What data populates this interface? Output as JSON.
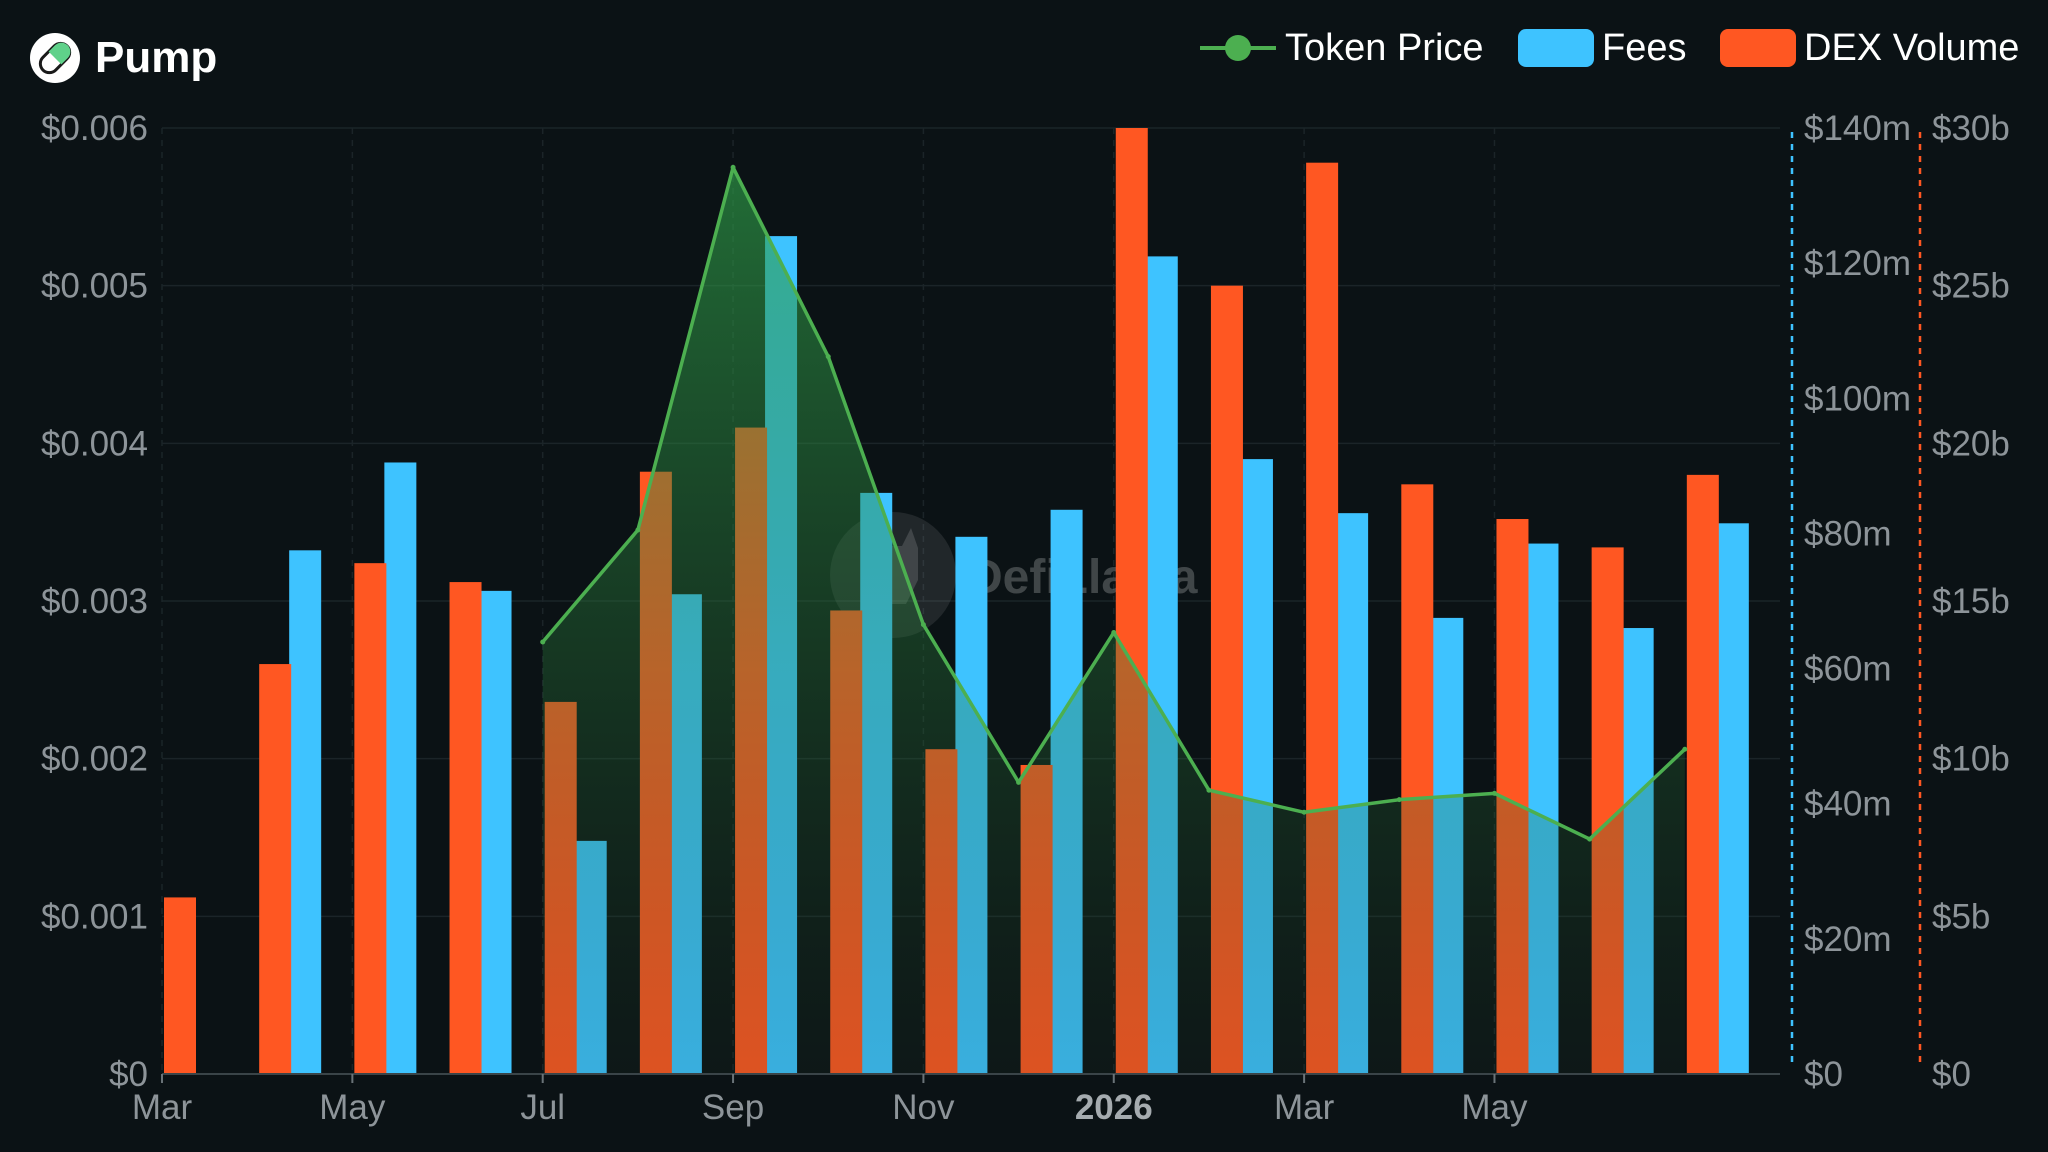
{
  "header": {
    "title": "Pump"
  },
  "legend": {
    "items": [
      {
        "label": "Token Price",
        "color": "#4caf50",
        "kind": "line"
      },
      {
        "label": "Fees",
        "color": "#3ec3ff",
        "kind": "box"
      },
      {
        "label": "DEX Volume",
        "color": "#ff5722",
        "kind": "box"
      }
    ]
  },
  "watermark": {
    "text": "DefiLlama",
    "icon": "llama-icon"
  },
  "chart_data": {
    "type": "bar",
    "x_tick_labels": [
      "Mar",
      "May",
      "Jul",
      "Sep",
      "Nov",
      "2026",
      "Mar",
      "May"
    ],
    "x_tick_bold": "2026",
    "categories": [
      "Mar 2025",
      "Apr 2025",
      "May 2025",
      "Jun 2025",
      "Jul 2025",
      "Aug 2025",
      "Sep 2025",
      "Oct 2025",
      "Nov 2025",
      "Dec 2025",
      "Jan 2026",
      "Feb 2026",
      "Mar 2026",
      "Apr 2026",
      "May 2026",
      "Jun 2026",
      "Jul 2026"
    ],
    "series": [
      {
        "name": "Fees",
        "color": "#3ec3ff",
        "axis": "fees",
        "type": "bar",
        "values": [
          null,
          77.5,
          90.5,
          71.5,
          34.5,
          71,
          124,
          86,
          79.5,
          83.5,
          121,
          91,
          83,
          67.5,
          78.5,
          66,
          81.5
        ]
      },
      {
        "name": "DEX Volume",
        "color": "#ff5722",
        "axis": "volume",
        "type": "bar",
        "values": [
          5.6,
          13,
          16.2,
          15.6,
          11.8,
          19.1,
          20.5,
          14.7,
          10.3,
          9.8,
          30,
          25,
          28.9,
          18.7,
          17.6,
          16.7,
          19
        ]
      },
      {
        "name": "Token Price",
        "color": "#4caf50",
        "axis": "price",
        "type": "line",
        "values": [
          null,
          null,
          null,
          null,
          0.00274,
          0.00345,
          0.00575,
          0.00455,
          0.00285,
          0.00185,
          0.0028,
          0.0018,
          0.00166,
          0.00174,
          0.00178,
          0.00149,
          0.00206
        ]
      }
    ],
    "axes": {
      "price": {
        "position": "left",
        "ylim": [
          0,
          0.006
        ],
        "ticks": [
          "$0",
          "$0.001",
          "$0.002",
          "$0.003",
          "$0.004",
          "$0.005",
          "$0.006"
        ]
      },
      "fees": {
        "position": "right",
        "ylim": [
          0,
          140
        ],
        "unit": "m",
        "color": "#3ec3ff",
        "ticks": [
          "$0",
          "$20m",
          "$40m",
          "$60m",
          "$80m",
          "$100m",
          "$120m",
          "$140m"
        ]
      },
      "volume": {
        "position": "right",
        "ylim": [
          0,
          30
        ],
        "unit": "b",
        "color": "#ff5722",
        "ticks": [
          "$0",
          "$5b",
          "$10b",
          "$15b",
          "$20b",
          "$25b",
          "$30b"
        ]
      }
    },
    "grid": true,
    "legend_position": "top-right"
  }
}
